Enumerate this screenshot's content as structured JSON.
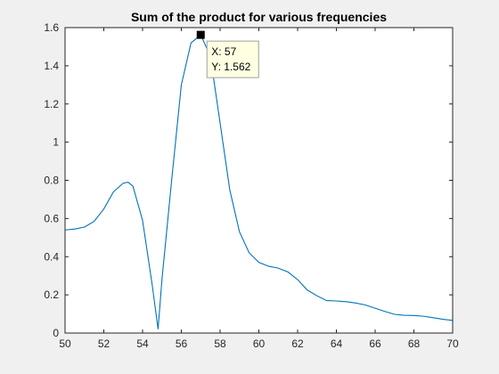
{
  "chart_data": {
    "type": "line",
    "title": "Sum of the product for various frequencies",
    "xlabel": "",
    "ylabel": "",
    "xlim": [
      50,
      70
    ],
    "ylim": [
      0,
      1.6
    ],
    "xticks": [
      "50",
      "52",
      "54",
      "56",
      "58",
      "60",
      "62",
      "64",
      "66",
      "68",
      "70"
    ],
    "yticks": [
      "0",
      "0.2",
      "0.4",
      "0.6",
      "0.8",
      "1",
      "1.2",
      "1.4",
      "1.6"
    ],
    "grid": false,
    "line_color": "#0072BD",
    "series": [
      {
        "x": [
          50,
          50.5,
          51,
          51.5,
          52,
          52.5,
          53,
          53.25,
          53.5,
          54,
          54.5,
          54.8,
          55,
          55.5,
          56,
          56.5,
          57,
          57.5,
          58,
          58.5,
          59,
          59.5,
          60,
          60.5,
          61,
          61.5,
          62,
          62.5,
          63,
          63.5,
          64,
          64.5,
          65,
          65.5,
          66,
          66.5,
          67,
          67.5,
          68,
          68.5,
          69,
          69.5,
          70
        ],
        "y": [
          0.54,
          0.545,
          0.555,
          0.585,
          0.65,
          0.74,
          0.785,
          0.79,
          0.77,
          0.59,
          0.25,
          0.02,
          0.28,
          0.8,
          1.3,
          1.52,
          1.562,
          1.45,
          1.1,
          0.75,
          0.53,
          0.42,
          0.37,
          0.35,
          0.34,
          0.32,
          0.28,
          0.225,
          0.195,
          0.17,
          0.168,
          0.164,
          0.157,
          0.147,
          0.13,
          0.113,
          0.098,
          0.093,
          0.092,
          0.088,
          0.08,
          0.072,
          0.066
        ]
      }
    ],
    "datatip": {
      "x": 57,
      "y": 1.562,
      "x_text": "X: 57",
      "y_text": "Y: 1.562"
    }
  }
}
